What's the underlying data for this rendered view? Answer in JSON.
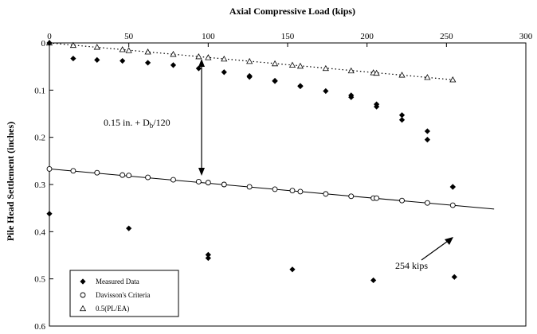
{
  "chart_data": {
    "type": "scatter",
    "xlabel": "Axial Compressive Load (kips)",
    "ylabel": "Pile Head Settlement (inches)",
    "x_axis_position": "top",
    "y_axis_inverted": true,
    "xlim": [
      0,
      300
    ],
    "ylim": [
      0,
      0.6
    ],
    "x_ticks": [
      "0",
      "50",
      "100",
      "150",
      "200",
      "250",
      "300"
    ],
    "y_ticks": [
      "0",
      "0.1",
      "0.2",
      "0.3",
      "0.4",
      "0.5",
      "0.6"
    ],
    "grid": false,
    "legend_position": "bottom-left",
    "series": [
      {
        "name": "Measured Data",
        "marker": "filled-diamond",
        "color": "#000000",
        "x": [
          0,
          15,
          30,
          46,
          62,
          78,
          94,
          110,
          126,
          142,
          158,
          174,
          190,
          206,
          222,
          238,
          254,
          254,
          238,
          222,
          206,
          190,
          126,
          142,
          158,
          0,
          50,
          100,
          100,
          153,
          204,
          255
        ],
        "y": [
          0,
          0.033,
          0.036,
          0.038,
          0.042,
          0.047,
          0.054,
          0.062,
          0.072,
          0.081,
          0.091,
          0.102,
          0.115,
          0.13,
          0.153,
          0.187,
          0.305,
          0.305,
          0.205,
          0.163,
          0.135,
          0.111,
          0.07,
          0.08,
          0.092,
          0.362,
          0.393,
          0.449,
          0.456,
          0.48,
          0.503,
          0.496
        ]
      },
      {
        "name": "Davisson's Criteria",
        "marker": "open-circle",
        "color": "#000000",
        "x": [
          0,
          15,
          30,
          46,
          50,
          62,
          78,
          94,
          100,
          110,
          126,
          142,
          153,
          158,
          174,
          190,
          204,
          206,
          222,
          238,
          254
        ],
        "y": [
          0.267,
          0.271,
          0.275,
          0.28,
          0.281,
          0.285,
          0.29,
          0.294,
          0.296,
          0.3,
          0.305,
          0.31,
          0.313,
          0.315,
          0.32,
          0.325,
          0.329,
          0.329,
          0.334,
          0.339,
          0.344
        ]
      },
      {
        "name": "0.5(PL/EA)",
        "marker": "open-triangle",
        "color": "#000000",
        "x": [
          0,
          15,
          30,
          46,
          50,
          62,
          78,
          94,
          100,
          110,
          126,
          142,
          153,
          158,
          174,
          190,
          204,
          206,
          222,
          238,
          254
        ],
        "y": [
          0,
          0.005,
          0.009,
          0.014,
          0.016,
          0.019,
          0.024,
          0.029,
          0.031,
          0.034,
          0.039,
          0.044,
          0.047,
          0.049,
          0.054,
          0.059,
          0.063,
          0.064,
          0.068,
          0.073,
          0.078
        ]
      }
    ],
    "lines": [
      {
        "name": "davisson-line",
        "style": "solid",
        "x": [
          0,
          280
        ],
        "y": [
          0.267,
          0.352
        ]
      },
      {
        "name": "elastic-line",
        "style": "dotted",
        "x": [
          0,
          254
        ],
        "y": [
          0,
          0.078
        ]
      }
    ],
    "annotations": {
      "offset_label": "0.15 in. + D",
      "offset_subscript": "b",
      "offset_suffix": "/120",
      "failure_load_label": "254 kips"
    }
  }
}
